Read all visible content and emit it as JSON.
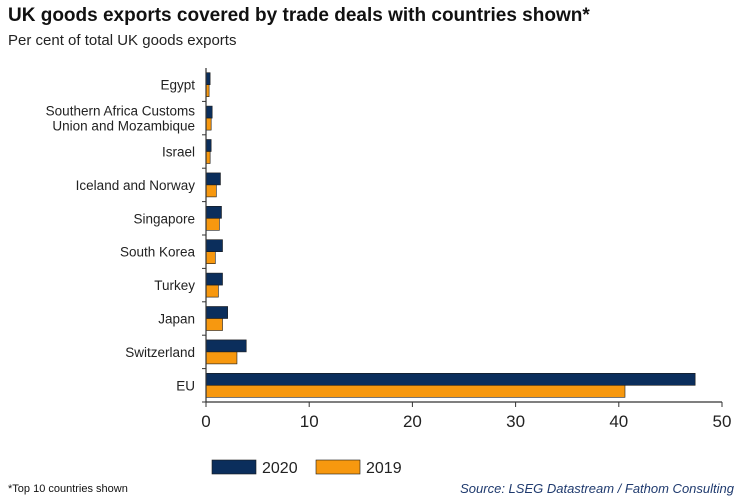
{
  "header": {
    "title": "UK goods exports covered by trade deals with countries shown*",
    "subtitle": "Per cent of total UK goods exports"
  },
  "footer": {
    "footnote": "*Top 10 countries shown",
    "source": "Source: LSEG Datastream / Fathom Consulting"
  },
  "colors": {
    "series_2020": "#0b2e5c",
    "series_2019": "#f7980f",
    "axis": "#333333"
  },
  "chart_data": {
    "type": "bar",
    "orientation": "horizontal",
    "title": "UK goods exports covered by trade deals with countries shown*",
    "subtitle": "Per cent of total UK goods exports",
    "categories": [
      [
        "Egypt"
      ],
      [
        "Southern Africa Customs",
        "Union and Mozambique"
      ],
      [
        "Israel"
      ],
      [
        "Iceland and Norway"
      ],
      [
        "Singapore"
      ],
      [
        "South Korea"
      ],
      [
        "Turkey"
      ],
      [
        "Japan"
      ],
      [
        "Switzerland"
      ],
      [
        "EU"
      ]
    ],
    "series": [
      {
        "name": "2020",
        "values": [
          0.4,
          0.6,
          0.5,
          1.4,
          1.5,
          1.6,
          1.6,
          2.1,
          3.9,
          47.4
        ]
      },
      {
        "name": "2019",
        "values": [
          0.3,
          0.5,
          0.4,
          1.0,
          1.3,
          0.9,
          1.2,
          1.6,
          3.0,
          40.6
        ]
      }
    ],
    "xlim": [
      0,
      50
    ],
    "xticks": [
      "0",
      "10",
      "20",
      "30",
      "40",
      "50"
    ],
    "xlabel": "",
    "ylabel": "",
    "legend_position": "bottom"
  }
}
